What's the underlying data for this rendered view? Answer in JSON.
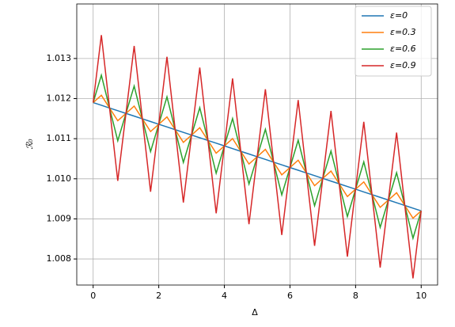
{
  "chart_data": {
    "type": "line",
    "x_label": "Δ",
    "y_label": "ℛ₀",
    "x": [
      0,
      0.25,
      0.5,
      0.75,
      1,
      1.25,
      1.5,
      1.75,
      2,
      2.25,
      2.5,
      2.75,
      3,
      3.25,
      3.5,
      3.75,
      4,
      4.25,
      4.5,
      4.75,
      5,
      5.25,
      5.5,
      5.75,
      6,
      6.25,
      6.5,
      6.75,
      7,
      7.25,
      7.5,
      7.75,
      8,
      8.25,
      8.5,
      8.75,
      9,
      9.25,
      9.5,
      9.75,
      10
    ],
    "series": [
      {
        "name": "ε=0",
        "color": "#1f77b4",
        "values": [
          1.0119,
          1.011833,
          1.011765,
          1.011698,
          1.01163,
          1.011563,
          1.011495,
          1.011428,
          1.01136,
          1.011293,
          1.011225,
          1.011158,
          1.01109,
          1.011023,
          1.010955,
          1.010888,
          1.01082,
          1.010753,
          1.010685,
          1.010618,
          1.01055,
          1.010483,
          1.010415,
          1.010348,
          1.01028,
          1.010213,
          1.010145,
          1.010078,
          1.01001,
          1.009942,
          1.009875,
          1.009807,
          1.00974,
          1.009672,
          1.009605,
          1.009537,
          1.00947,
          1.009402,
          1.009335,
          1.009267,
          1.0092
        ]
      },
      {
        "name": "ε=0.3",
        "color": "#ff7f0e",
        "values": [
          1.0119,
          1.012083,
          1.011765,
          1.011448,
          1.01163,
          1.011813,
          1.011495,
          1.011178,
          1.01136,
          1.011543,
          1.011225,
          1.010908,
          1.01109,
          1.011273,
          1.010955,
          1.010638,
          1.01082,
          1.011003,
          1.010685,
          1.010368,
          1.01055,
          1.010733,
          1.010415,
          1.010098,
          1.01028,
          1.010463,
          1.010145,
          1.009828,
          1.01001,
          1.010192,
          1.009875,
          1.009557,
          1.00974,
          1.009922,
          1.009605,
          1.009287,
          1.00947,
          1.009652,
          1.009335,
          1.009017,
          1.0092
        ]
      },
      {
        "name": "ε=0.6",
        "color": "#2ca02c",
        "values": [
          1.0119,
          1.012583,
          1.011765,
          1.010948,
          1.01163,
          1.012313,
          1.011495,
          1.010678,
          1.01136,
          1.012043,
          1.011225,
          1.010408,
          1.01109,
          1.011773,
          1.010955,
          1.010138,
          1.01082,
          1.011503,
          1.010685,
          1.009868,
          1.01055,
          1.011233,
          1.010415,
          1.009598,
          1.01028,
          1.010963,
          1.010145,
          1.009328,
          1.01001,
          1.010692,
          1.009875,
          1.009057,
          1.00974,
          1.010422,
          1.009605,
          1.008787,
          1.00947,
          1.010152,
          1.009335,
          1.008517,
          1.0092
        ]
      },
      {
        "name": "ε=0.9",
        "color": "#d62728",
        "values": [
          1.0119,
          1.013583,
          1.011765,
          1.009948,
          1.01163,
          1.013313,
          1.011495,
          1.009678,
          1.01136,
          1.013043,
          1.011225,
          1.009408,
          1.01109,
          1.012773,
          1.010955,
          1.009138,
          1.01082,
          1.012503,
          1.010685,
          1.008868,
          1.01055,
          1.012233,
          1.010415,
          1.008598,
          1.01028,
          1.011963,
          1.010145,
          1.008328,
          1.01001,
          1.011692,
          1.009875,
          1.008057,
          1.00974,
          1.011422,
          1.009605,
          1.007787,
          1.00947,
          1.011152,
          1.009335,
          1.007517,
          1.0092
        ]
      }
    ],
    "xlim": [
      -0.5,
      10.5
    ],
    "xticks": [
      0,
      2,
      4,
      6,
      8,
      10
    ],
    "ylim": [
      1.00735,
      1.01436
    ],
    "yticks": [
      1.008,
      1.009,
      {
        "value": 1.01,
        "label": "1.010"
      },
      1.011,
      1.012,
      1.013
    ],
    "grid": true,
    "legend": "upper-right"
  }
}
